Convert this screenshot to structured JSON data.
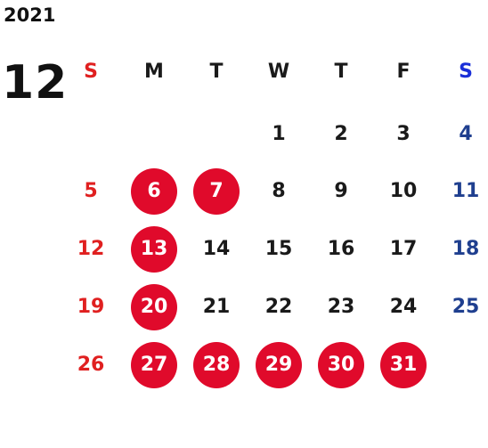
{
  "year": "2021",
  "month": "12",
  "weekdays": [
    "S",
    "M",
    "T",
    "W",
    "T",
    "F",
    "S"
  ],
  "weeks": [
    [
      "",
      "",
      "",
      "1",
      "2",
      "3",
      "4"
    ],
    [
      "5",
      "6",
      "7",
      "8",
      "9",
      "10",
      "11"
    ],
    [
      "12",
      "13",
      "14",
      "15",
      "16",
      "17",
      "18"
    ],
    [
      "19",
      "20",
      "21",
      "22",
      "23",
      "24",
      "25"
    ],
    [
      "26",
      "27",
      "28",
      "29",
      "30",
      "31",
      ""
    ]
  ],
  "highlighted_days": [
    "6",
    "7",
    "13",
    "20",
    "27",
    "28",
    "29",
    "30",
    "31"
  ],
  "colors": {
    "sunday": "#e02020",
    "saturday": "#1f3f8f",
    "saturday_header": "#1a2fd8",
    "highlight": "#e00a2b",
    "text": "#1a1a1a"
  }
}
